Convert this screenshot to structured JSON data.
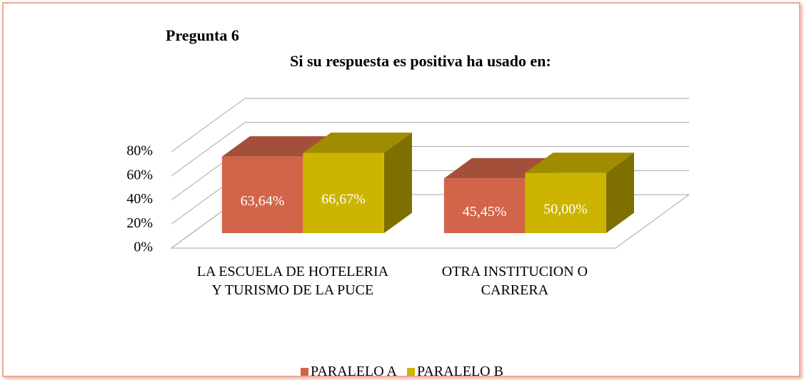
{
  "chart_data": {
    "type": "bar3d",
    "title": "Pregunta 6",
    "subtitle": "Si su respuesta es positiva ha usado en:",
    "categories": [
      "LA ESCUELA DE HOTELERIA Y TURISMO DE LA PUCE",
      "OTRA INSTITUCION O CARRERA"
    ],
    "series": [
      {
        "name": "PARALELO A",
        "color": "#d26549",
        "values": [
          63.64,
          45.45
        ],
        "value_labels": [
          "63,64%",
          "45,45%"
        ]
      },
      {
        "name": "PARALELO B",
        "color": "#ccb400",
        "values": [
          66.67,
          50.0
        ],
        "value_labels": [
          "66,67%",
          "50,00%"
        ]
      }
    ],
    "ylim": [
      0,
      80
    ],
    "yticks": [
      {
        "value": 0,
        "label": "0%"
      },
      {
        "value": 20,
        "label": "20%"
      },
      {
        "value": 40,
        "label": "40%"
      },
      {
        "value": 60,
        "label": "60%"
      },
      {
        "value": 80,
        "label": "80%"
      }
    ],
    "grid": true,
    "legend": "bottom"
  }
}
